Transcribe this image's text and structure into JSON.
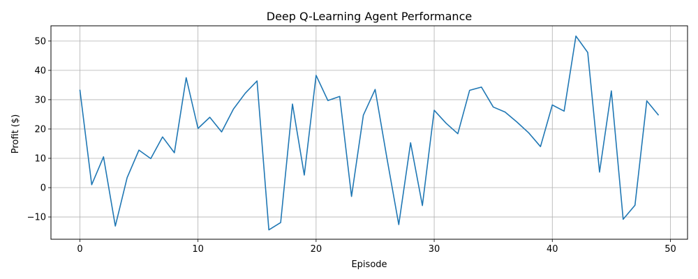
{
  "chart_data": {
    "type": "line",
    "title": "Deep Q-Learning Agent Performance",
    "xlabel": "Episode",
    "ylabel": "Profit ($)",
    "xlim": [
      -2.45,
      51.45
    ],
    "ylim": [
      -17.6,
      55.2
    ],
    "xticks": [
      0,
      10,
      20,
      30,
      40,
      50
    ],
    "yticks": [
      -10,
      0,
      10,
      20,
      30,
      40,
      50
    ],
    "grid": true,
    "series": [
      {
        "color": "#1f77b4",
        "x": [
          0,
          1,
          2,
          3,
          4,
          5,
          6,
          7,
          8,
          9,
          10,
          11,
          12,
          13,
          14,
          15,
          16,
          17,
          18,
          19,
          20,
          21,
          22,
          23,
          24,
          25,
          26,
          27,
          28,
          29,
          30,
          31,
          32,
          33,
          34,
          35,
          36,
          37,
          38,
          39,
          40,
          41,
          42,
          43,
          44,
          45,
          46,
          47,
          48,
          49
        ],
        "y": [
          33.4,
          1.0,
          10.5,
          -13.1,
          3.4,
          12.8,
          9.9,
          17.3,
          11.9,
          37.5,
          20.2,
          24.0,
          19.0,
          26.8,
          32.2,
          36.4,
          -14.4,
          -11.9,
          28.5,
          4.3,
          38.3,
          29.7,
          31.1,
          -3.0,
          24.7,
          33.5,
          10.0,
          -12.6,
          15.3,
          -6.1,
          26.4,
          22.0,
          18.4,
          33.2,
          34.3,
          27.5,
          25.8,
          22.4,
          18.7,
          14.0,
          28.2,
          26.1,
          51.7,
          46.1,
          5.3,
          33.0,
          -10.8,
          -6.0,
          29.6,
          24.7
        ]
      }
    ]
  }
}
